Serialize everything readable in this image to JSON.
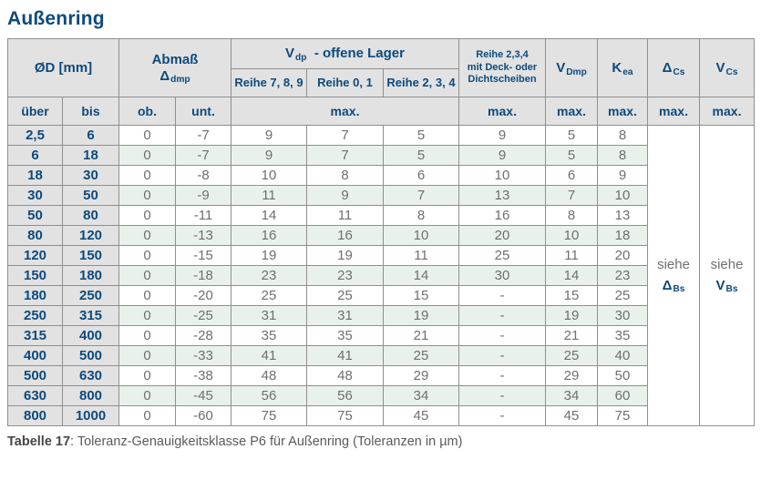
{
  "title": "Außenring",
  "table": {
    "header": {
      "diameter": "ØD  [mm]",
      "abmass": {
        "line1": "Abmaß",
        "sym": "Δ",
        "sub": "dmp"
      },
      "vdp": {
        "sym": "V",
        "sub": "dp",
        "rest": "-  offene Lager"
      },
      "reihe789": "Reihe 7, 8, 9",
      "reihe01": "Reihe 0, 1",
      "reihe234": "Reihe 2, 3, 4",
      "deck_lines": [
        "Reihe 2,3,4",
        "mit Deck- oder",
        "Dichtscheiben"
      ],
      "vdmp": {
        "sym": "V",
        "sub": "Dmp"
      },
      "kea": {
        "sym": "K",
        "sub": "ea"
      },
      "dcs": {
        "sym": "Δ",
        "sub": "Cs"
      },
      "vcs": {
        "sym": "V",
        "sub": "Cs"
      },
      "ueber": "über",
      "bis": "bis",
      "ob": "ob.",
      "unt": "unt.",
      "max": "max."
    },
    "notes": {
      "dcs": {
        "word": "siehe",
        "sym": "Δ",
        "sub": "Bs"
      },
      "vcs": {
        "word": "siehe",
        "sym": "V",
        "sub": "Bs"
      }
    },
    "rows": [
      [
        "2,5",
        "6",
        "0",
        "-7",
        "9",
        "7",
        "5",
        "9",
        "5",
        "8"
      ],
      [
        "6",
        "18",
        "0",
        "-7",
        "9",
        "7",
        "5",
        "9",
        "5",
        "8"
      ],
      [
        "18",
        "30",
        "0",
        "-8",
        "10",
        "8",
        "6",
        "10",
        "6",
        "9"
      ],
      [
        "30",
        "50",
        "0",
        "-9",
        "11",
        "9",
        "7",
        "13",
        "7",
        "10"
      ],
      [
        "50",
        "80",
        "0",
        "-11",
        "14",
        "11",
        "8",
        "16",
        "8",
        "13"
      ],
      [
        "80",
        "120",
        "0",
        "-13",
        "16",
        "16",
        "10",
        "20",
        "10",
        "18"
      ],
      [
        "120",
        "150",
        "0",
        "-15",
        "19",
        "19",
        "11",
        "25",
        "11",
        "20"
      ],
      [
        "150",
        "180",
        "0",
        "-18",
        "23",
        "23",
        "14",
        "30",
        "14",
        "23"
      ],
      [
        "180",
        "250",
        "0",
        "-20",
        "25",
        "25",
        "15",
        "-",
        "15",
        "25"
      ],
      [
        "250",
        "315",
        "0",
        "-25",
        "31",
        "31",
        "19",
        "-",
        "19",
        "30"
      ],
      [
        "315",
        "400",
        "0",
        "-28",
        "35",
        "35",
        "21",
        "-",
        "21",
        "35"
      ],
      [
        "400",
        "500",
        "0",
        "-33",
        "41",
        "41",
        "25",
        "-",
        "25",
        "40"
      ],
      [
        "500",
        "630",
        "0",
        "-38",
        "48",
        "48",
        "29",
        "-",
        "29",
        "50"
      ],
      [
        "630",
        "800",
        "0",
        "-45",
        "56",
        "56",
        "34",
        "-",
        "34",
        "60"
      ],
      [
        "800",
        "1000",
        "0",
        "-60",
        "75",
        "75",
        "45",
        "-",
        "45",
        "75"
      ]
    ]
  },
  "caption": {
    "label": "Tabelle 17",
    "text": ": Toleranz-Genauigkeitsklasse P6 für Außenring (Toleranzen in µm)"
  },
  "colors": {
    "accent_blue": "#0d4a7d",
    "header_bg": "#e2e2e2",
    "row_alt_green": "#e9f2ea",
    "border_gray": "#8f8f8f",
    "value_text_gray": "#6f6f6f"
  }
}
